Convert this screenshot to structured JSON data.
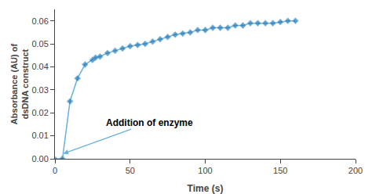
{
  "chart_data": {
    "type": "line",
    "xlabel": "Time (s)",
    "ylabel": "Absorbance (AU) of\ndsDNA construct",
    "x": [
      0,
      5,
      10,
      15,
      20,
      25,
      27,
      30,
      35,
      40,
      45,
      50,
      55,
      60,
      65,
      70,
      75,
      80,
      85,
      90,
      95,
      100,
      105,
      110,
      115,
      120,
      125,
      130,
      135,
      140,
      145,
      150,
      155,
      160
    ],
    "values": [
      0.0,
      0.0,
      0.025,
      0.035,
      0.041,
      0.043,
      0.044,
      0.0445,
      0.046,
      0.047,
      0.048,
      0.049,
      0.0495,
      0.05,
      0.051,
      0.052,
      0.053,
      0.054,
      0.0545,
      0.055,
      0.056,
      0.056,
      0.057,
      0.057,
      0.057,
      0.058,
      0.058,
      0.059,
      0.059,
      0.059,
      0.059,
      0.0595,
      0.06,
      0.06
    ],
    "color": "#6ab0dc",
    "colors": [
      "#2278b5",
      "#2278b5",
      "#2278b5",
      "#2278b5",
      "#2278b5",
      "#2278b5",
      "#2278b5",
      "#2278b5",
      "#2278b5",
      "#2278b5",
      "#2278b5",
      "#2278b5",
      "#2278b5",
      "#2278b5",
      "#2278b5",
      "#2278b5",
      "#2278b5",
      "#2278b5",
      "#2278b5",
      "#2278b5",
      "#2278b5",
      "#2278b5",
      "#2278b5",
      "#2278b5",
      "#2278b5",
      "#2278b5",
      "#2278b5",
      "#2278b5",
      "#2278b5",
      "#2278b5",
      "#2278b5",
      "#2278b5",
      "#2278b5",
      "#2278b5"
    ],
    "marker": "diamond",
    "line_style": "solid",
    "xlim": [
      0,
      200
    ],
    "xticks": [
      0,
      50,
      100,
      150,
      200
    ],
    "ylim": [
      0,
      0.065
    ],
    "yticks": [
      {
        "value": 0,
        "label": "0.00"
      },
      0.01,
      0.02,
      0.03,
      0.04,
      0.05,
      0.06
    ],
    "grid": false,
    "annotations": [
      {
        "text": "Addition of enzyme",
        "x": 5.5,
        "y": 0.0022
      }
    ]
  }
}
